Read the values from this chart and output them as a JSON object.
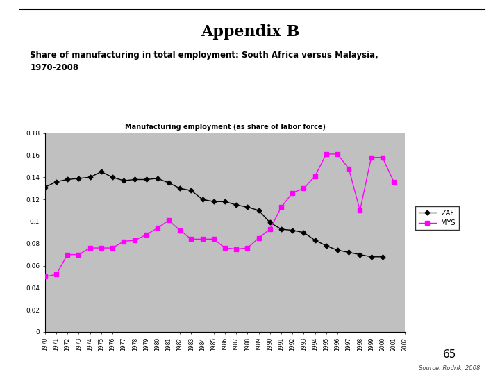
{
  "title": "Appendix B",
  "subtitle": "Share of manufacturing in total employment: South Africa versus Malaysia,\n1970-2008",
  "chart_title": "Manufacturing employment (as share of labor force)",
  "background_color": "#c0c0c0",
  "page_bg": "#ffffff",
  "years": [
    1970,
    1971,
    1972,
    1973,
    1974,
    1975,
    1976,
    1977,
    1978,
    1979,
    1980,
    1981,
    1982,
    1983,
    1984,
    1985,
    1986,
    1987,
    1988,
    1989,
    1990,
    1991,
    1992,
    1993,
    1994,
    1995,
    1996,
    1997,
    1998,
    1999,
    2000,
    2001,
    2002
  ],
  "ZAF": [
    0.131,
    0.136,
    0.138,
    0.139,
    0.14,
    0.145,
    0.14,
    0.137,
    0.138,
    0.138,
    0.139,
    0.135,
    0.13,
    0.128,
    0.12,
    0.118,
    0.118,
    0.115,
    0.113,
    0.11,
    0.099,
    0.093,
    0.092,
    0.09,
    0.083,
    0.078,
    0.074,
    0.072,
    0.07,
    0.068,
    0.068,
    null,
    null
  ],
  "MYS": [
    0.05,
    0.052,
    0.07,
    0.07,
    0.076,
    0.076,
    0.076,
    0.082,
    0.083,
    0.088,
    0.094,
    0.101,
    0.092,
    0.084,
    0.084,
    0.084,
    0.076,
    0.075,
    0.076,
    0.085,
    0.093,
    0.113,
    0.126,
    0.13,
    0.141,
    0.161,
    0.161,
    0.148,
    0.11,
    0.158,
    0.158,
    0.136,
    null
  ],
  "zaf_color": "#000000",
  "mys_color": "#ff00ff",
  "source_text": "Source: Rodrik, 2008",
  "page_number": "65",
  "ylim": [
    0,
    0.18
  ],
  "yticks": [
    0,
    0.02,
    0.04,
    0.06,
    0.08,
    0.1,
    0.12,
    0.14,
    0.16,
    0.18
  ],
  "ytick_labels": [
    "0",
    "0.02",
    "0.04",
    "0.06",
    "0.08",
    "0.1",
    "0.12",
    "0.14",
    "0.16",
    "0.18"
  ]
}
